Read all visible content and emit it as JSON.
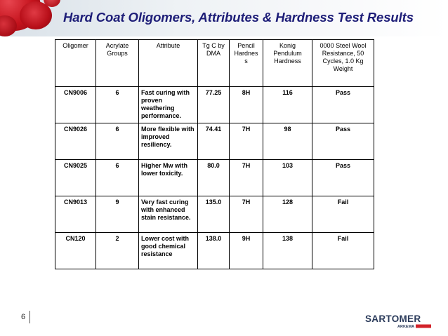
{
  "slide": {
    "title": "Hard Coat Oligomers, Attributes & Hardness Test Results",
    "page_number": "6"
  },
  "table": {
    "headers": [
      "Oligomer",
      "Acrylate Groups",
      "Attribute",
      "Tg C by DMA",
      "Pencil Hardnes s",
      "Konig Pendulum Hardness",
      "0000 Steel Wool Resistance, 50 Cycles, 1.0 Kg Weight"
    ],
    "rows": [
      [
        "CN9006",
        "6",
        "Fast curing with proven weathering performance.",
        "77.25",
        "8H",
        "116",
        "Pass"
      ],
      [
        "CN9026",
        "6",
        "More flexible with improved resiliency.",
        "74.41",
        "7H",
        "98",
        "Pass"
      ],
      [
        "CN9025",
        "6",
        "Higher Mw with lower toxicity.",
        "80.0",
        "7H",
        "103",
        "Pass"
      ],
      [
        "CN9013",
        "9",
        "Very fast curing with enhanced stain resistance.",
        "135.0",
        "7H",
        "128",
        "Fail"
      ],
      [
        "CN120",
        "2",
        "Lower cost with good chemical resistance",
        "138.0",
        "9H",
        "138",
        "Fail"
      ]
    ]
  },
  "logo": {
    "brand": "SARTOMER",
    "sub": "ARKEMA",
    "brand_color": "#2a3a5a",
    "accent_color": "#d2232a"
  },
  "colors": {
    "title": "#1e1e78",
    "blood_red": "#c4121c"
  }
}
